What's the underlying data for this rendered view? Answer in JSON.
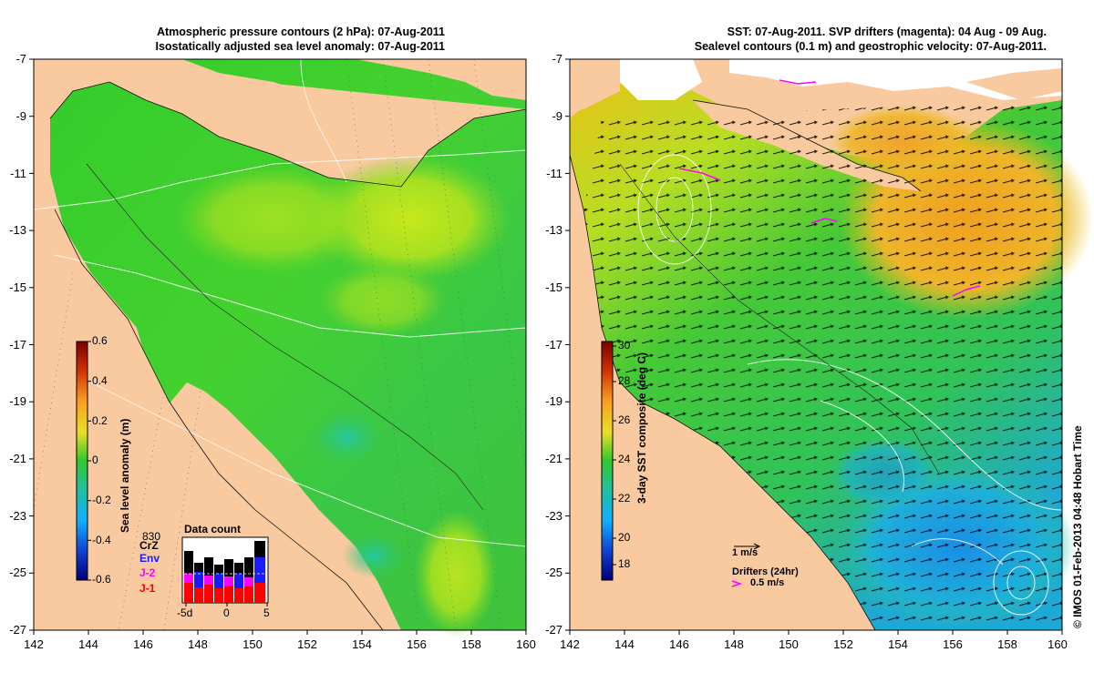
{
  "left_panel": {
    "title_line1": "Atmospheric pressure contours (2 hPa): 07-Aug-2011",
    "title_line2": "Isostatically adjusted sea level anomaly: 07-Aug-2011",
    "colorbar_label": "Sea level anomaly (m)",
    "colorbar_ticks": [
      "0.6",
      "0.4",
      "0.2",
      "0",
      "-0.2",
      "-0.4",
      "-0.6"
    ],
    "inset": {
      "title": "Data count",
      "count": "830",
      "missions": [
        "CrZ",
        "Env",
        "J-2",
        "J-1"
      ],
      "mission_colors": [
        "#000000",
        "#1a1aff",
        "#ff00ff",
        "#ff0000"
      ],
      "x_ticks": [
        "-5d",
        "0",
        "5"
      ]
    }
  },
  "right_panel": {
    "title_line1": "SST: 07-Aug-2011. SVP drifters (magenta): 04 Aug - 09 Aug.",
    "title_line2": "Sealevel contours (0.1 m) and geostrophic velocity: 07-Aug-2011.",
    "colorbar_label": "3-day SST composite (deg C)",
    "colorbar_ticks": [
      "30",
      "28",
      "26",
      "24",
      "22",
      "20",
      "18"
    ],
    "velocity_scale_label": "1 m/s",
    "drifters_label": "Drifters (24hr)",
    "drifter_scale_label": "0.5 m/s"
  },
  "axes": {
    "y_ticks": [
      "-7",
      "-9",
      "-11",
      "-13",
      "-15",
      "-17",
      "-19",
      "-21",
      "-23",
      "-25",
      "-27"
    ],
    "x_ticks": [
      "142",
      "144",
      "146",
      "148",
      "150",
      "152",
      "154",
      "156",
      "158",
      "160"
    ]
  },
  "credit": "© IMOS 01-Feb-2013 04:48 Hobart Time",
  "colors": {
    "land": "#f9c9a0",
    "sea_green": "#33cc33",
    "sea_yellow": "#b5e61d",
    "sst_orange": "#f5a623",
    "sst_blue": "#1aa3e8"
  }
}
